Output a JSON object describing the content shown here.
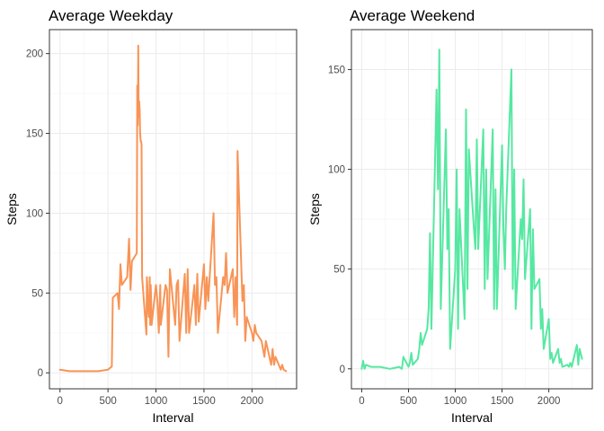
{
  "chart_data": [
    {
      "type": "line",
      "title": "Average Weekday",
      "xlabel": "Interval",
      "ylabel": "Steps",
      "xlim": [
        -110,
        2465
      ],
      "ylim": [
        -10,
        215
      ],
      "xticks": [
        0,
        500,
        1000,
        1500,
        2000
      ],
      "yticks": [
        0,
        50,
        100,
        150,
        200
      ],
      "grid": true,
      "color": "#F89456",
      "series": [
        {
          "x": [
            0,
            100,
            200,
            300,
            400,
            500,
            520,
            540,
            550,
            600,
            615,
            630,
            645,
            700,
            720,
            735,
            750,
            800,
            805,
            810,
            815,
            820,
            825,
            830,
            835,
            840,
            845,
            850,
            855,
            900,
            905,
            910,
            915,
            920,
            925,
            930,
            935,
            940,
            945,
            950,
            955,
            1000,
            1015,
            1030,
            1045,
            1050,
            1100,
            1115,
            1130,
            1145,
            1200,
            1215,
            1230,
            1245,
            1300,
            1315,
            1330,
            1345,
            1400,
            1415,
            1430,
            1445,
            1500,
            1515,
            1530,
            1545,
            1600,
            1615,
            1630,
            1645,
            1700,
            1715,
            1730,
            1745,
            1800,
            1815,
            1830,
            1845,
            1850,
            1900,
            1915,
            1930,
            1945,
            2000,
            2015,
            2030,
            2045,
            2100,
            2115,
            2130,
            2145,
            2200,
            2215,
            2230,
            2245,
            2300,
            2315,
            2330,
            2355
          ],
          "y": [
            2,
            1,
            1,
            1,
            1,
            2,
            3,
            4,
            47,
            50,
            40,
            68,
            55,
            60,
            84,
            52,
            70,
            75,
            180,
            155,
            205,
            160,
            170,
            165,
            150,
            145,
            145,
            143,
            60,
            24,
            60,
            55,
            45,
            40,
            35,
            38,
            60,
            30,
            55,
            45,
            30,
            55,
            45,
            25,
            55,
            30,
            55,
            52,
            10,
            65,
            30,
            55,
            58,
            20,
            62,
            25,
            65,
            25,
            55,
            30,
            62,
            32,
            68,
            40,
            60,
            45,
            100,
            55,
            60,
            25,
            60,
            55,
            75,
            50,
            65,
            35,
            60,
            30,
            139,
            45,
            55,
            20,
            35,
            25,
            20,
            30,
            25,
            20,
            15,
            10,
            20,
            5,
            15,
            5,
            10,
            2,
            5,
            2,
            1
          ]
        }
      ]
    },
    {
      "type": "line",
      "title": "Average Weekend",
      "xlabel": "Interval",
      "ylabel": "Steps",
      "xlim": [
        -110,
        2465
      ],
      "ylim": [
        -10,
        170
      ],
      "xticks": [
        0,
        500,
        1000,
        1500,
        2000
      ],
      "yticks": [
        0,
        50,
        100,
        150
      ],
      "grid": true,
      "color": "#56E8A2",
      "series": [
        {
          "x": [
            0,
            15,
            30,
            45,
            100,
            200,
            300,
            400,
            430,
            445,
            500,
            515,
            530,
            545,
            600,
            615,
            630,
            645,
            700,
            715,
            730,
            745,
            800,
            815,
            830,
            845,
            900,
            915,
            930,
            945,
            1000,
            1015,
            1030,
            1045,
            1100,
            1115,
            1130,
            1145,
            1200,
            1215,
            1230,
            1245,
            1300,
            1315,
            1330,
            1345,
            1400,
            1415,
            1430,
            1445,
            1500,
            1515,
            1530,
            1545,
            1600,
            1615,
            1630,
            1645,
            1700,
            1715,
            1730,
            1745,
            1800,
            1815,
            1830,
            1845,
            1900,
            1915,
            1930,
            1945,
            2000,
            2015,
            2030,
            2045,
            2100,
            2115,
            2130,
            2145,
            2200,
            2215,
            2230,
            2245,
            2300,
            2315,
            2330,
            2355
          ],
          "y": [
            0,
            4,
            0,
            2,
            1,
            1,
            0,
            1,
            0,
            6,
            1,
            3,
            8,
            2,
            5,
            10,
            18,
            12,
            20,
            30,
            68,
            20,
            140,
            90,
            160,
            30,
            120,
            60,
            80,
            10,
            50,
            100,
            20,
            80,
            25,
            130,
            40,
            110,
            70,
            60,
            115,
            60,
            120,
            40,
            100,
            45,
            120,
            30,
            90,
            30,
            112,
            70,
            50,
            80,
            150,
            40,
            100,
            30,
            75,
            65,
            95,
            45,
            80,
            20,
            70,
            40,
            45,
            20,
            30,
            10,
            25,
            5,
            8,
            3,
            10,
            3,
            5,
            1,
            2,
            1,
            3,
            1,
            12,
            2,
            10,
            5
          ]
        }
      ]
    }
  ]
}
